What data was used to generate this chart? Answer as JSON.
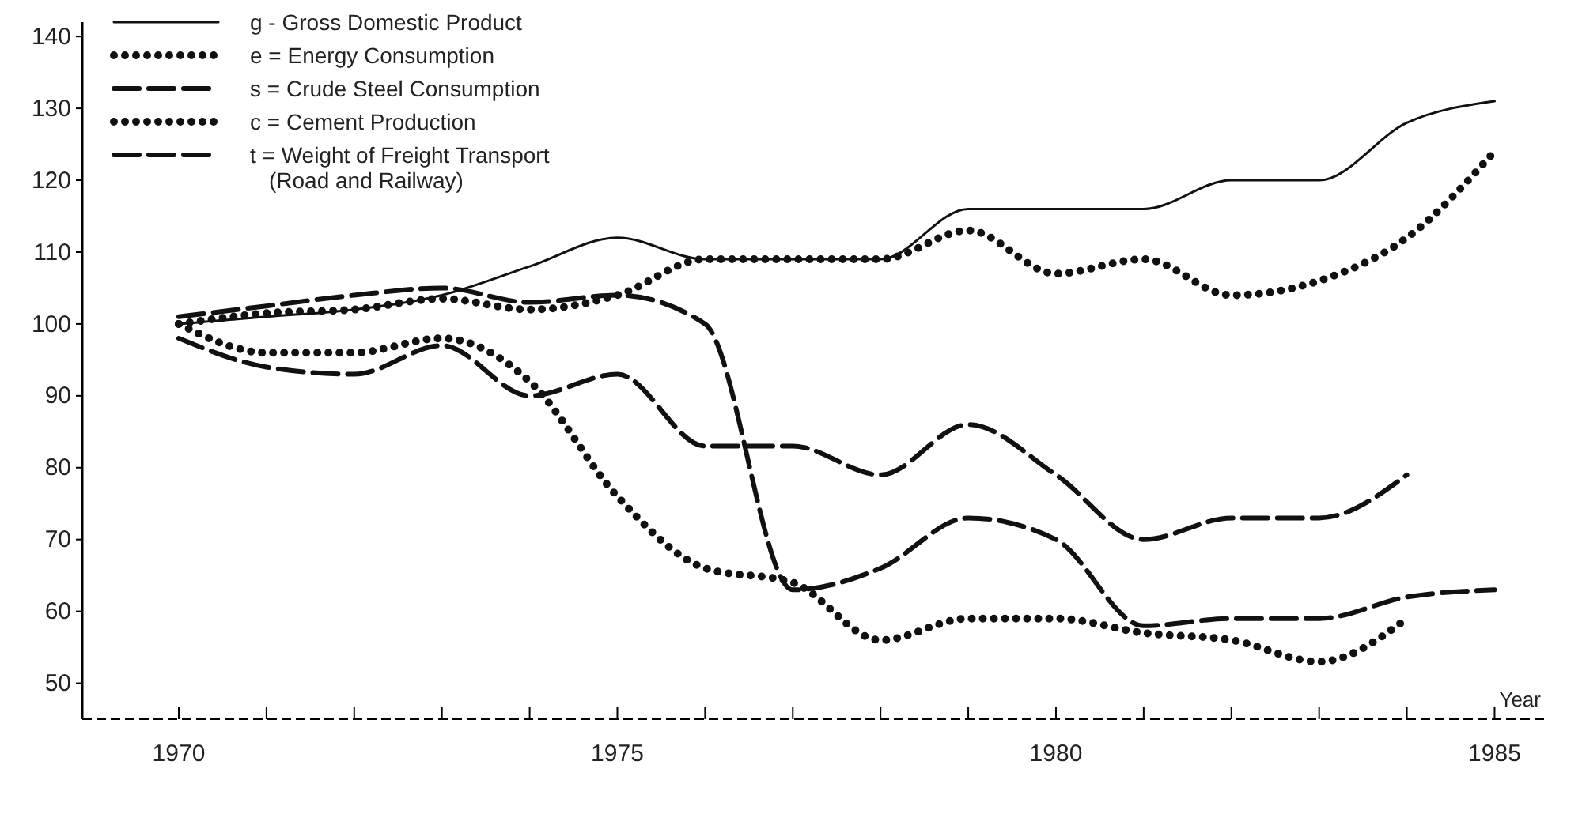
{
  "chart_data": {
    "type": "line",
    "xlabel": "Year",
    "x": [
      1970,
      1971,
      1972,
      1973,
      1974,
      1975,
      1976,
      1977,
      1978,
      1979,
      1980,
      1981,
      1982,
      1983,
      1984,
      1985
    ],
    "series": [
      {
        "name": "g - Gross Domestic Product",
        "color": "#111111",
        "line_style": "solid",
        "values": [
          100,
          101,
          102,
          104,
          108,
          112,
          109,
          109,
          109,
          116,
          116,
          116,
          120,
          120,
          128,
          131
        ]
      },
      {
        "name": "e = Energy Consumption",
        "color": "#111111",
        "line_style": "dotted",
        "values": [
          100,
          101.5,
          102,
          103.5,
          102,
          104,
          109,
          109,
          109,
          113,
          107,
          109,
          104,
          106,
          112,
          124
        ]
      },
      {
        "name": "s = Crude Steel Consumption",
        "color": "#111111",
        "line_style": "dashed",
        "values": [
          101,
          102.5,
          104,
          105,
          103,
          104,
          100,
          63,
          66,
          73,
          70,
          58,
          59,
          59,
          62,
          63
        ]
      },
      {
        "name": "c = Cement Production",
        "color": "#111111",
        "line_style": "dotted",
        "values": [
          100,
          96,
          96,
          98,
          92,
          76,
          66,
          64,
          56,
          59,
          59,
          57,
          56,
          53,
          59,
          null
        ]
      },
      {
        "name": "t = Weight of Freight Transport (Road and Railway)",
        "color": "#111111",
        "line_style": "dashed",
        "values": [
          98,
          94,
          93,
          97,
          90,
          93,
          83,
          83,
          79,
          86,
          79,
          70,
          73,
          73,
          79,
          null
        ]
      }
    ],
    "xlim": [
      1968.9,
      1985.6
    ],
    "xticks": [
      1970,
      {
        "value": 1971,
        "label": null
      },
      {
        "value": 1972,
        "label": null
      },
      {
        "value": 1973,
        "label": null
      },
      {
        "value": 1974,
        "label": null
      },
      1975,
      {
        "value": 1976,
        "label": null
      },
      {
        "value": 1977,
        "label": null
      },
      {
        "value": 1978,
        "label": null
      },
      {
        "value": 1979,
        "label": null
      },
      1980,
      {
        "value": 1981,
        "label": null
      },
      {
        "value": 1982,
        "label": null
      },
      {
        "value": 1983,
        "label": null
      },
      {
        "value": 1984,
        "label": null
      },
      1985
    ],
    "ylim": [
      45,
      142
    ],
    "yticks": [
      50,
      60,
      70,
      80,
      90,
      100,
      110,
      120,
      130,
      140
    ],
    "grid": false,
    "legend": "top left"
  }
}
